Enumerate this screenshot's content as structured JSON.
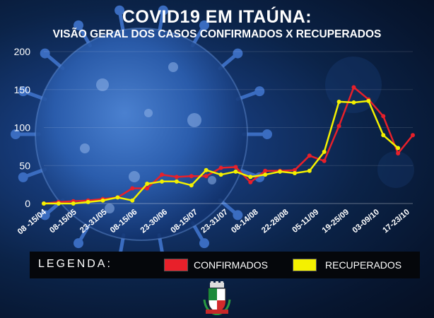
{
  "title": "COVID19 EM ITAÚNA:",
  "subtitle": "VISÃO GERAL DOS CASOS CONFIRMADOS X RECUPERADOS",
  "legend": {
    "heading": "LEGENDA:",
    "confirmados": "CONFIRMADOS",
    "recuperados": "RECUPERADOS"
  },
  "colors": {
    "confirmados": "#e8202a",
    "recuperados": "#f4f100"
  },
  "chart_data": {
    "type": "line",
    "title": "COVID19 EM ITAÚNA:",
    "subtitle": "VISÃO GERAL DOS CASOS CONFIRMADOS X RECUPERADOS",
    "ylim": [
      0,
      200
    ],
    "yticks": [
      0,
      50,
      100,
      150,
      200
    ],
    "tick_labels": [
      "08 -15/04",
      "08-15/05",
      "23-31/05",
      "08-15/06",
      "23-30/06",
      "08-15/07",
      "23-31/07",
      "08-14/08",
      "22-28/08",
      "05-11/09",
      "19-25/09",
      "03-09/10",
      "17-23/10"
    ],
    "legend_position": "bottom",
    "series": [
      {
        "name": "CONFIRMADOS",
        "color": "#e8202a",
        "values": [
          0,
          2,
          3,
          4,
          6,
          8,
          20,
          20,
          38,
          35,
          36,
          36,
          47,
          48,
          28,
          43,
          43,
          44,
          63,
          56,
          102,
          153,
          137,
          115,
          66,
          90
        ]
      },
      {
        "name": "RECUPERADOS",
        "color": "#f4f100",
        "values": [
          0,
          0,
          0,
          2,
          4,
          8,
          4,
          26,
          29,
          29,
          24,
          44,
          38,
          42,
          35,
          38,
          42,
          40,
          43,
          68,
          134,
          133,
          135,
          90,
          73
        ]
      }
    ]
  }
}
